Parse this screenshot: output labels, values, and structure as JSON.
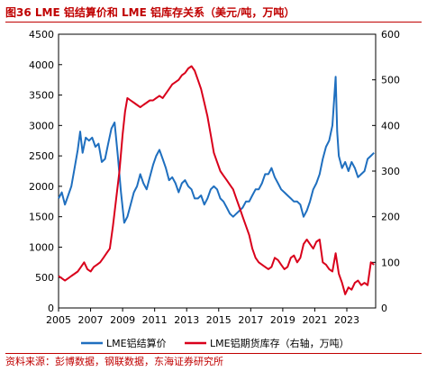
{
  "figure": {
    "title": "图36  LME 铝结算价和 LME 铝库存关系（美元/吨，万吨）",
    "source": "资料来源：彭博数据，钢联数据，东海证券研究所"
  },
  "chart_data": {
    "type": "line",
    "title": "",
    "xlabel": "",
    "ylabel": "",
    "x_ticks": [
      "2005",
      "2007",
      "2009",
      "2011",
      "2013",
      "2015",
      "2017",
      "2019",
      "2021",
      "2023"
    ],
    "xlim": [
      2005,
      2024.8
    ],
    "ylim_left": [
      0,
      4500
    ],
    "ylim_right": [
      0,
      600
    ],
    "y_ticks_left": [
      "0",
      "500",
      "1000",
      "1500",
      "2000",
      "2500",
      "3000",
      "3500",
      "4000",
      "4500"
    ],
    "y_ticks_right": [
      "0",
      "100",
      "200",
      "300",
      "400",
      "500",
      "600"
    ],
    "grid": false,
    "legend_position": "bottom",
    "series": [
      {
        "name": "LME铝结算价",
        "axis": "left",
        "color": "#1f6fbf",
        "x": [
          2005.0,
          2005.2,
          2005.4,
          2005.6,
          2005.8,
          2006.0,
          2006.2,
          2006.35,
          2006.5,
          2006.7,
          2006.9,
          2007.1,
          2007.3,
          2007.5,
          2007.7,
          2007.9,
          2008.1,
          2008.3,
          2008.5,
          2008.7,
          2008.9,
          2009.1,
          2009.3,
          2009.5,
          2009.7,
          2009.9,
          2010.1,
          2010.3,
          2010.5,
          2010.7,
          2010.9,
          2011.1,
          2011.3,
          2011.5,
          2011.7,
          2011.9,
          2012.1,
          2012.3,
          2012.5,
          2012.7,
          2012.9,
          2013.1,
          2013.3,
          2013.5,
          2013.7,
          2013.9,
          2014.1,
          2014.3,
          2014.5,
          2014.7,
          2014.9,
          2015.1,
          2015.3,
          2015.5,
          2015.7,
          2015.9,
          2016.1,
          2016.3,
          2016.5,
          2016.7,
          2016.9,
          2017.1,
          2017.3,
          2017.5,
          2017.7,
          2017.9,
          2018.1,
          2018.3,
          2018.5,
          2018.7,
          2018.9,
          2019.1,
          2019.3,
          2019.5,
          2019.7,
          2019.9,
          2020.1,
          2020.3,
          2020.5,
          2020.7,
          2020.9,
          2021.1,
          2021.3,
          2021.5,
          2021.7,
          2021.9,
          2022.1,
          2022.2,
          2022.3,
          2022.4,
          2022.5,
          2022.7,
          2022.9,
          2023.1,
          2023.3,
          2023.5,
          2023.7,
          2023.9,
          2024.1,
          2024.3,
          2024.5,
          2024.7
        ],
        "values": [
          1800,
          1900,
          1700,
          1850,
          2000,
          2300,
          2600,
          2900,
          2550,
          2800,
          2750,
          2800,
          2650,
          2700,
          2400,
          2450,
          2700,
          2950,
          3050,
          2500,
          1900,
          1400,
          1500,
          1700,
          1900,
          2000,
          2200,
          2050,
          1950,
          2150,
          2350,
          2500,
          2600,
          2450,
          2300,
          2100,
          2150,
          2050,
          1900,
          2050,
          2100,
          2000,
          1950,
          1800,
          1800,
          1850,
          1700,
          1800,
          1950,
          2000,
          1950,
          1800,
          1750,
          1650,
          1550,
          1500,
          1550,
          1600,
          1650,
          1750,
          1750,
          1850,
          1950,
          1950,
          2050,
          2200,
          2200,
          2300,
          2150,
          2050,
          1950,
          1900,
          1850,
          1800,
          1750,
          1750,
          1700,
          1500,
          1600,
          1750,
          1950,
          2050,
          2200,
          2450,
          2650,
          2750,
          3000,
          3400,
          3800,
          2900,
          2500,
          2300,
          2400,
          2250,
          2400,
          2300,
          2150,
          2200,
          2250,
          2450,
          2500,
          2550
        ]
      },
      {
        "name": "LME铝期货库存（右轴，万吨）",
        "axis": "right",
        "color": "#d9001b",
        "x": [
          2005.0,
          2005.2,
          2005.4,
          2005.6,
          2005.8,
          2006.0,
          2006.2,
          2006.4,
          2006.6,
          2006.8,
          2007.0,
          2007.2,
          2007.4,
          2007.6,
          2007.8,
          2008.0,
          2008.2,
          2008.4,
          2008.6,
          2008.8,
          2009.0,
          2009.15,
          2009.3,
          2009.5,
          2009.7,
          2009.9,
          2010.1,
          2010.3,
          2010.5,
          2010.7,
          2010.9,
          2011.1,
          2011.3,
          2011.5,
          2011.7,
          2011.9,
          2012.1,
          2012.3,
          2012.5,
          2012.7,
          2012.9,
          2013.1,
          2013.3,
          2013.5,
          2013.7,
          2013.9,
          2014.1,
          2014.3,
          2014.5,
          2014.7,
          2014.9,
          2015.1,
          2015.3,
          2015.5,
          2015.7,
          2015.9,
          2016.1,
          2016.3,
          2016.5,
          2016.7,
          2016.9,
          2017.1,
          2017.3,
          2017.5,
          2017.7,
          2017.9,
          2018.1,
          2018.3,
          2018.5,
          2018.7,
          2018.9,
          2019.1,
          2019.3,
          2019.5,
          2019.7,
          2019.9,
          2020.1,
          2020.3,
          2020.5,
          2020.7,
          2020.9,
          2021.1,
          2021.3,
          2021.5,
          2021.7,
          2021.9,
          2022.1,
          2022.3,
          2022.5,
          2022.7,
          2022.9,
          2023.1,
          2023.3,
          2023.5,
          2023.7,
          2023.9,
          2024.1,
          2024.3,
          2024.5,
          2024.7
        ],
        "values": [
          70,
          65,
          60,
          65,
          70,
          75,
          80,
          90,
          100,
          85,
          80,
          90,
          95,
          100,
          110,
          120,
          130,
          180,
          240,
          300,
          380,
          430,
          460,
          455,
          450,
          445,
          440,
          445,
          450,
          455,
          455,
          460,
          465,
          460,
          470,
          480,
          490,
          495,
          500,
          510,
          515,
          525,
          530,
          520,
          500,
          480,
          450,
          420,
          380,
          340,
          320,
          300,
          290,
          280,
          270,
          260,
          240,
          220,
          200,
          180,
          160,
          130,
          110,
          100,
          95,
          90,
          85,
          90,
          110,
          105,
          95,
          85,
          90,
          110,
          115,
          100,
          110,
          140,
          150,
          140,
          130,
          145,
          150,
          100,
          95,
          85,
          80,
          120,
          75,
          55,
          30,
          45,
          40,
          55,
          60,
          50,
          55,
          50,
          100,
          95
        ]
      }
    ]
  }
}
